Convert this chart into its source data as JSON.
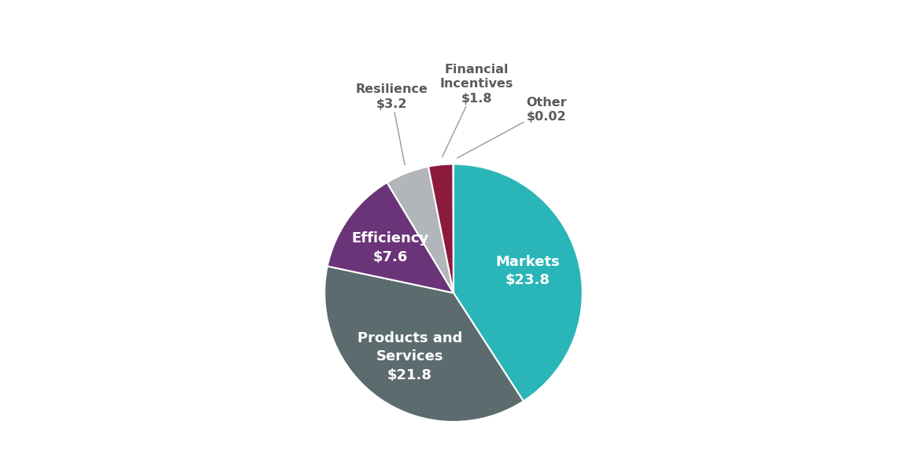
{
  "values": [
    23.8,
    21.8,
    7.6,
    3.2,
    1.8,
    0.02
  ],
  "colors": [
    "#2ab5b8",
    "#5c6b6e",
    "#6b3478",
    "#b2b6ba",
    "#8b1a3c",
    "#2ab5b8"
  ],
  "label_texts": [
    "Markets\n$23.8",
    "Products and\nServices\n$21.8",
    "Efficiency\n$7.6",
    "Resilience\n$3.2",
    "Financial\nIncentives\n$1.8",
    "Other\n$0.02"
  ],
  "label_inside": [
    true,
    true,
    true,
    false,
    false,
    false
  ],
  "label_fontcolors": [
    "white",
    "white",
    "white",
    "#5a5a5a",
    "#5a5a5a",
    "#5a5a5a"
  ],
  "startangle": 90,
  "background_color": "#ffffff",
  "inside_label_r": 0.6,
  "outside_label_r": 1.3,
  "arrow_start_r": 1.03,
  "fontsize_inside": 13,
  "fontsize_outside": 11.5
}
